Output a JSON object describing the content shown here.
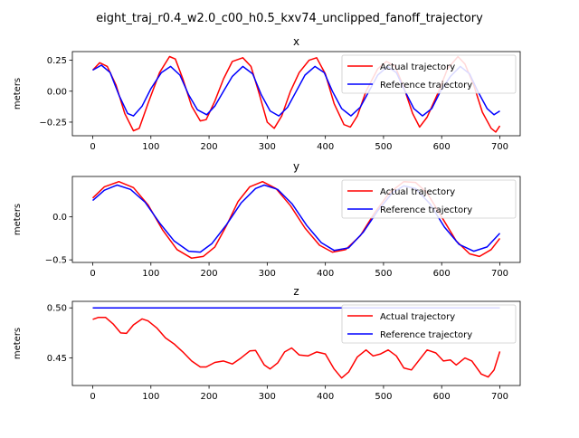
{
  "figure": {
    "suptitle": "eight_traj_r0.4_w2.0_c00_h0.5_kxv74_unclipped_fanoff_trajectory"
  },
  "chart_data": [
    {
      "type": "line",
      "title": "x",
      "ylabel": "meters",
      "xlabel": "",
      "xlim": [
        -35,
        735
      ],
      "ylim": [
        -0.36,
        0.32
      ],
      "xticks": [
        0,
        100,
        200,
        300,
        400,
        500,
        600,
        700
      ],
      "yticks": [
        0.25,
        0.0,
        -0.25
      ],
      "ytick_labels": [
        "0.25",
        "0.00",
        "−0.25"
      ],
      "legend": "top-right",
      "grid": false,
      "series": [
        {
          "name": "Actual trajectory",
          "color": "#ff0000",
          "points": [
            [
              0,
              0.17
            ],
            [
              12,
              0.23
            ],
            [
              25,
              0.2
            ],
            [
              40,
              0.05
            ],
            [
              55,
              -0.18
            ],
            [
              70,
              -0.32
            ],
            [
              80,
              -0.3
            ],
            [
              95,
              -0.1
            ],
            [
              115,
              0.15
            ],
            [
              132,
              0.28
            ],
            [
              142,
              0.26
            ],
            [
              155,
              0.1
            ],
            [
              170,
              -0.12
            ],
            [
              185,
              -0.24
            ],
            [
              195,
              -0.23
            ],
            [
              210,
              -0.08
            ],
            [
              225,
              0.1
            ],
            [
              240,
              0.24
            ],
            [
              258,
              0.27
            ],
            [
              272,
              0.2
            ],
            [
              285,
              0.0
            ],
            [
              300,
              -0.25
            ],
            [
              312,
              -0.3
            ],
            [
              325,
              -0.2
            ],
            [
              340,
              0.0
            ],
            [
              355,
              0.15
            ],
            [
              372,
              0.25
            ],
            [
              385,
              0.27
            ],
            [
              400,
              0.14
            ],
            [
              415,
              -0.1
            ],
            [
              432,
              -0.27
            ],
            [
              443,
              -0.29
            ],
            [
              455,
              -0.2
            ],
            [
              470,
              0.0
            ],
            [
              490,
              0.18
            ],
            [
              505,
              0.24
            ],
            [
              520,
              0.2
            ],
            [
              535,
              0.03
            ],
            [
              550,
              -0.18
            ],
            [
              562,
              -0.29
            ],
            [
              575,
              -0.21
            ],
            [
              595,
              0.0
            ],
            [
              610,
              0.18
            ],
            [
              628,
              0.28
            ],
            [
              640,
              0.22
            ],
            [
              655,
              0.05
            ],
            [
              670,
              -0.17
            ],
            [
              685,
              -0.3
            ],
            [
              693,
              -0.33
            ],
            [
              700,
              -0.28
            ]
          ]
        },
        {
          "name": "Reference trajectory",
          "color": "#0000ff",
          "points": [
            [
              0,
              0.17
            ],
            [
              15,
              0.21
            ],
            [
              30,
              0.15
            ],
            [
              45,
              -0.03
            ],
            [
              60,
              -0.18
            ],
            [
              70,
              -0.2
            ],
            [
              85,
              -0.12
            ],
            [
              100,
              0.02
            ],
            [
              118,
              0.15
            ],
            [
              134,
              0.2
            ],
            [
              150,
              0.13
            ],
            [
              165,
              -0.03
            ],
            [
              180,
              -0.15
            ],
            [
              196,
              -0.19
            ],
            [
              210,
              -0.12
            ],
            [
              225,
              0.0
            ],
            [
              240,
              0.12
            ],
            [
              258,
              0.2
            ],
            [
              275,
              0.14
            ],
            [
              290,
              -0.03
            ],
            [
              305,
              -0.16
            ],
            [
              320,
              -0.2
            ],
            [
              335,
              -0.13
            ],
            [
              350,
              0.0
            ],
            [
              365,
              0.13
            ],
            [
              382,
              0.2
            ],
            [
              398,
              0.15
            ],
            [
              412,
              0.0
            ],
            [
              428,
              -0.14
            ],
            [
              444,
              -0.2
            ],
            [
              460,
              -0.13
            ],
            [
              475,
              0.0
            ],
            [
              490,
              0.13
            ],
            [
              507,
              0.2
            ],
            [
              522,
              0.15
            ],
            [
              537,
              0.0
            ],
            [
              552,
              -0.14
            ],
            [
              567,
              -0.2
            ],
            [
              583,
              -0.14
            ],
            [
              598,
              0.0
            ],
            [
              615,
              0.12
            ],
            [
              632,
              0.2
            ],
            [
              648,
              0.14
            ],
            [
              662,
              0.0
            ],
            [
              678,
              -0.14
            ],
            [
              690,
              -0.19
            ],
            [
              700,
              -0.16
            ]
          ]
        }
      ]
    },
    {
      "type": "line",
      "title": "y",
      "ylabel": "meters",
      "xlabel": "",
      "xlim": [
        -35,
        735
      ],
      "ylim": [
        -0.53,
        0.47
      ],
      "xticks": [
        0,
        100,
        200,
        300,
        400,
        500,
        600,
        700
      ],
      "yticks": [
        0.0,
        -0.5
      ],
      "ytick_labels": [
        "0.0",
        "−0.5"
      ],
      "legend": "top-right",
      "grid": false,
      "series": [
        {
          "name": "Actual trajectory",
          "color": "#ff0000",
          "points": [
            [
              0,
              0.22
            ],
            [
              20,
              0.35
            ],
            [
              45,
              0.41
            ],
            [
              70,
              0.34
            ],
            [
              95,
              0.14
            ],
            [
              120,
              -0.15
            ],
            [
              145,
              -0.38
            ],
            [
              170,
              -0.48
            ],
            [
              190,
              -0.46
            ],
            [
              210,
              -0.35
            ],
            [
              230,
              -0.1
            ],
            [
              250,
              0.18
            ],
            [
              270,
              0.35
            ],
            [
              292,
              0.41
            ],
            [
              315,
              0.33
            ],
            [
              340,
              0.13
            ],
            [
              365,
              -0.13
            ],
            [
              390,
              -0.33
            ],
            [
              412,
              -0.41
            ],
            [
              435,
              -0.38
            ],
            [
              460,
              -0.22
            ],
            [
              485,
              0.05
            ],
            [
              510,
              0.28
            ],
            [
              535,
              0.41
            ],
            [
              555,
              0.4
            ],
            [
              575,
              0.28
            ],
            [
              600,
              0.0
            ],
            [
              625,
              -0.28
            ],
            [
              648,
              -0.43
            ],
            [
              665,
              -0.46
            ],
            [
              685,
              -0.38
            ],
            [
              700,
              -0.25
            ]
          ]
        },
        {
          "name": "Reference trajectory",
          "color": "#0000ff",
          "points": [
            [
              0,
              0.19
            ],
            [
              20,
              0.31
            ],
            [
              42,
              0.37
            ],
            [
              65,
              0.32
            ],
            [
              90,
              0.17
            ],
            [
              115,
              -0.07
            ],
            [
              140,
              -0.28
            ],
            [
              165,
              -0.4
            ],
            [
              185,
              -0.41
            ],
            [
              205,
              -0.31
            ],
            [
              230,
              -0.09
            ],
            [
              255,
              0.16
            ],
            [
              280,
              0.33
            ],
            [
              295,
              0.37
            ],
            [
              318,
              0.32
            ],
            [
              343,
              0.15
            ],
            [
              368,
              -0.1
            ],
            [
              393,
              -0.3
            ],
            [
              415,
              -0.39
            ],
            [
              440,
              -0.36
            ],
            [
              465,
              -0.18
            ],
            [
              490,
              0.07
            ],
            [
              515,
              0.28
            ],
            [
              535,
              0.36
            ],
            [
              555,
              0.33
            ],
            [
              580,
              0.15
            ],
            [
              605,
              -0.12
            ],
            [
              630,
              -0.32
            ],
            [
              655,
              -0.4
            ],
            [
              678,
              -0.35
            ],
            [
              700,
              -0.19
            ]
          ]
        }
      ]
    },
    {
      "type": "line",
      "title": "z",
      "ylabel": "meters",
      "xlabel": "",
      "xlim": [
        -35,
        735
      ],
      "ylim": [
        0.4225,
        0.5065
      ],
      "xticks": [
        0,
        100,
        200,
        300,
        400,
        500,
        600,
        700
      ],
      "yticks": [
        0.5,
        0.45
      ],
      "ytick_labels": [
        "0.50",
        "0.45"
      ],
      "legend": "top-right",
      "grid": false,
      "series": [
        {
          "name": "Actual trajectory",
          "color": "#ff0000",
          "points": [
            [
              0,
              0.4885
            ],
            [
              10,
              0.4905
            ],
            [
              22,
              0.4905
            ],
            [
              35,
              0.484
            ],
            [
              48,
              0.475
            ],
            [
              58,
              0.4745
            ],
            [
              70,
              0.483
            ],
            [
              85,
              0.489
            ],
            [
              95,
              0.487
            ],
            [
              110,
              0.48
            ],
            [
              125,
              0.47
            ],
            [
              140,
              0.464
            ],
            [
              155,
              0.456
            ],
            [
              170,
              0.447
            ],
            [
              185,
              0.441
            ],
            [
              195,
              0.441
            ],
            [
              210,
              0.4455
            ],
            [
              225,
              0.447
            ],
            [
              240,
              0.444
            ],
            [
              255,
              0.45
            ],
            [
              270,
              0.457
            ],
            [
              280,
              0.4575
            ],
            [
              295,
              0.443
            ],
            [
              305,
              0.439
            ],
            [
              318,
              0.445
            ],
            [
              330,
              0.456
            ],
            [
              342,
              0.46
            ],
            [
              355,
              0.453
            ],
            [
              370,
              0.452
            ],
            [
              385,
              0.456
            ],
            [
              400,
              0.454
            ],
            [
              415,
              0.439
            ],
            [
              428,
              0.43
            ],
            [
              440,
              0.436
            ],
            [
              455,
              0.451
            ],
            [
              470,
              0.458
            ],
            [
              482,
              0.452
            ],
            [
              495,
              0.454
            ],
            [
              508,
              0.458
            ],
            [
              522,
              0.452
            ],
            [
              535,
              0.44
            ],
            [
              548,
              0.438
            ],
            [
              560,
              0.447
            ],
            [
              575,
              0.458
            ],
            [
              590,
              0.455
            ],
            [
              603,
              0.447
            ],
            [
              615,
              0.448
            ],
            [
              625,
              0.443
            ],
            [
              640,
              0.45
            ],
            [
              652,
              0.447
            ],
            [
              668,
              0.434
            ],
            [
              680,
              0.431
            ],
            [
              690,
              0.438
            ],
            [
              700,
              0.4565
            ]
          ]
        },
        {
          "name": "Reference trajectory",
          "color": "#0000ff",
          "points": [
            [
              0,
              0.5
            ],
            [
              700,
              0.5
            ]
          ]
        }
      ]
    }
  ]
}
